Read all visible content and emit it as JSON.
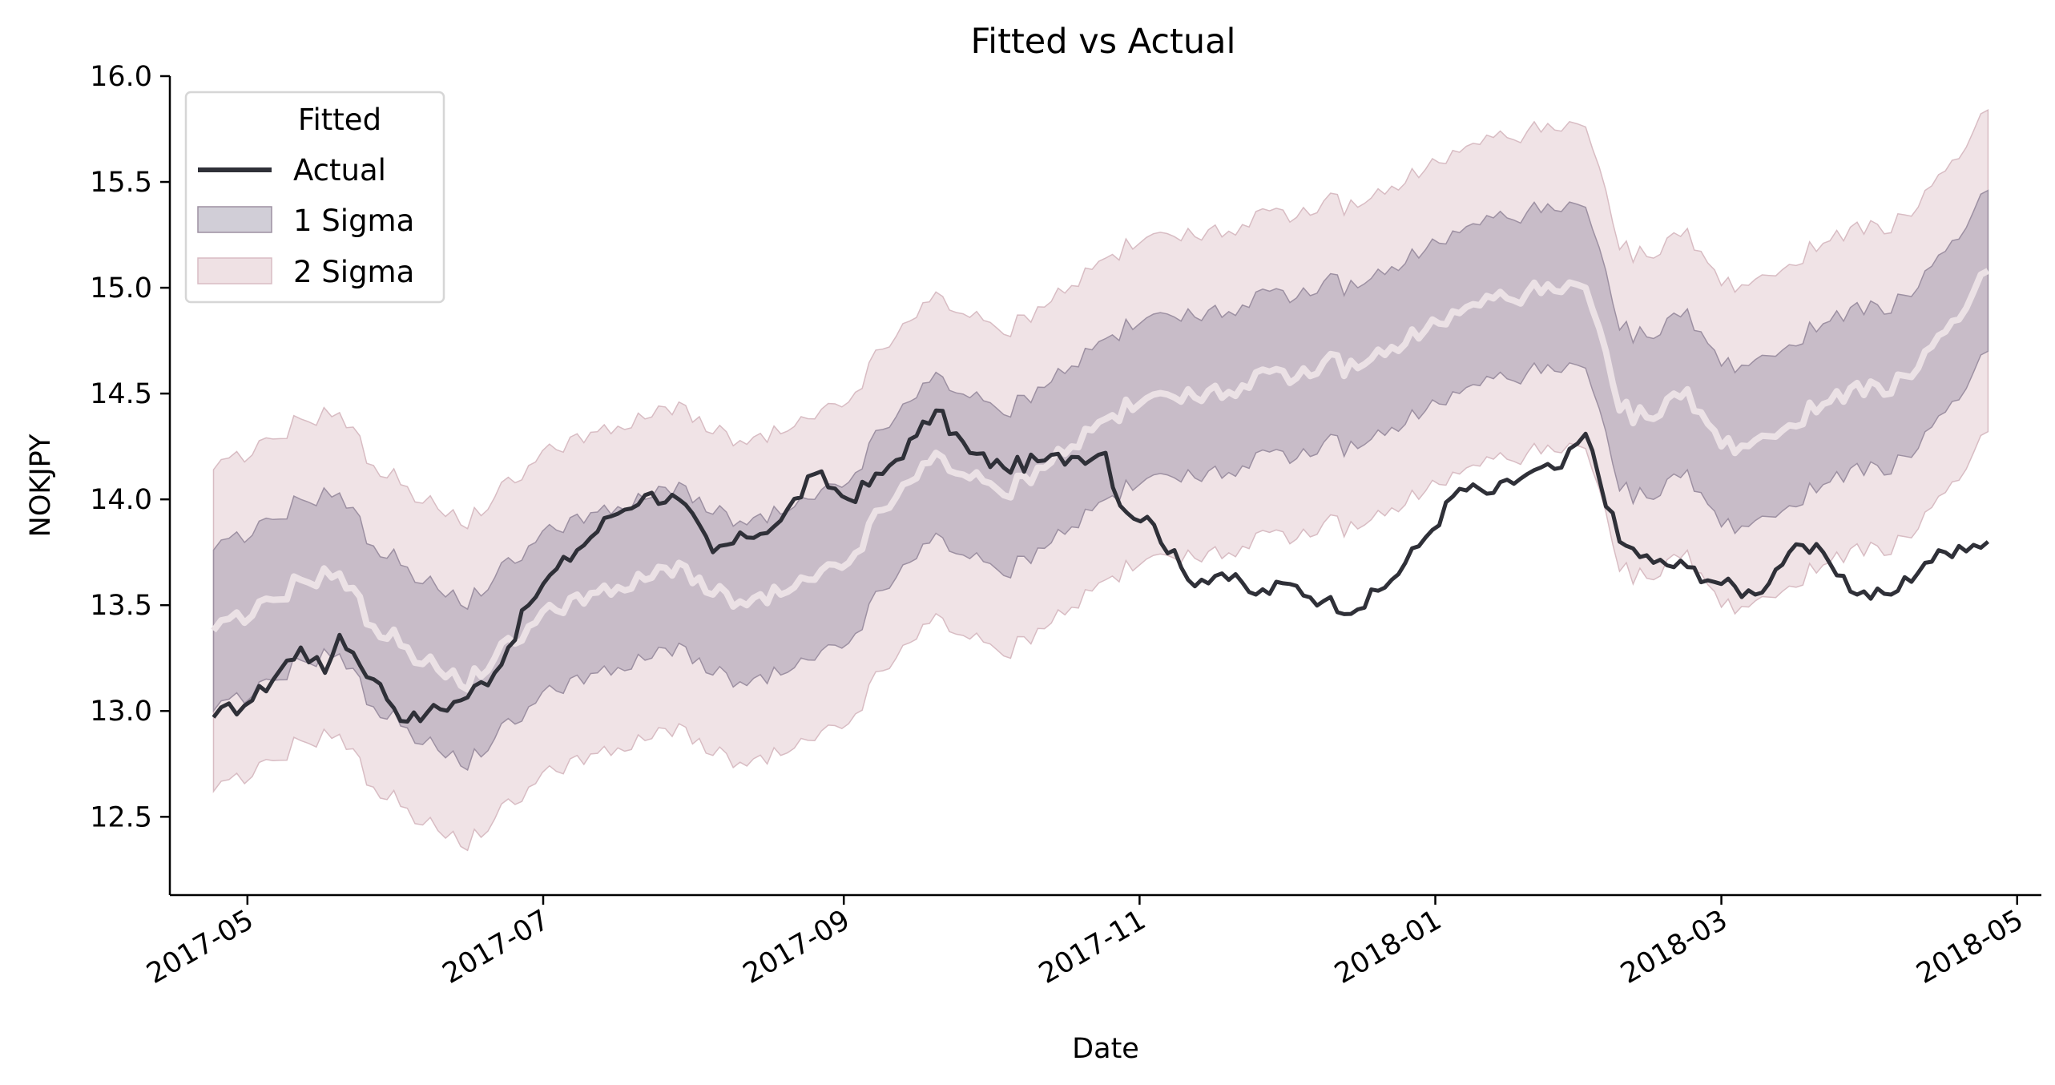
{
  "colors": {
    "actual": "#2f3038",
    "fitted": "#ebe1e5",
    "sigma1_fill": "#b8b4c2",
    "sigma2_fill": "#ebd9dd"
  },
  "chart_data": {
    "type": "line",
    "title": "Fitted vs Actual",
    "xlabel": "Date",
    "ylabel": "NOKJPY",
    "xlim": [
      "2017-04-15",
      "2018-05-06"
    ],
    "ylim": [
      12.13,
      16.0
    ],
    "yticks": [
      12.5,
      13.0,
      13.5,
      14.0,
      14.5,
      15.0,
      15.5,
      16.0
    ],
    "ytick_labels": [
      "12.5",
      "13.0",
      "13.5",
      "14.0",
      "14.5",
      "15.0",
      "15.5",
      "16.0"
    ],
    "xticks": [
      "2017-05-01",
      "2017-07-01",
      "2017-09-01",
      "2017-11-01",
      "2018-01-01",
      "2018-03-01",
      "2018-05-01"
    ],
    "xtick_labels": [
      "2017-05",
      "2017-07",
      "2017-09",
      "2017-11",
      "2018-01",
      "2018-03",
      "2018-05"
    ],
    "legend": {
      "position": "upper-left",
      "title": "Fitted",
      "entries": [
        "Actual",
        "1 Sigma",
        "2 Sigma"
      ]
    },
    "grid": false,
    "sigma_half_width": 0.38,
    "series": [
      {
        "name": "Actual",
        "x": [
          "2017-04-24",
          "2017-05-02",
          "2017-05-12",
          "2017-05-17",
          "2017-05-20",
          "2017-05-27",
          "2017-06-03",
          "2017-06-07",
          "2017-06-14",
          "2017-06-21",
          "2017-06-28",
          "2017-07-01",
          "2017-07-08",
          "2017-07-15",
          "2017-07-22",
          "2017-07-29",
          "2017-08-05",
          "2017-08-12",
          "2017-08-19",
          "2017-08-26",
          "2017-09-02",
          "2017-09-09",
          "2017-09-16",
          "2017-09-20",
          "2017-09-27",
          "2017-10-04",
          "2017-10-11",
          "2017-10-18",
          "2017-10-25",
          "2017-10-28",
          "2017-11-04",
          "2017-11-11",
          "2017-11-18",
          "2017-11-25",
          "2017-12-02",
          "2017-12-09",
          "2017-12-16",
          "2017-12-23",
          "2017-12-30",
          "2018-01-06",
          "2018-01-13",
          "2018-01-20",
          "2018-01-27",
          "2018-02-01",
          "2018-02-08",
          "2018-02-15",
          "2018-02-22",
          "2018-03-01",
          "2018-03-08",
          "2018-03-15",
          "2018-03-22",
          "2018-03-29",
          "2018-04-05",
          "2018-04-12",
          "2018-04-19",
          "2018-04-25"
        ],
        "y": [
          12.97,
          13.05,
          13.3,
          13.18,
          13.36,
          13.15,
          12.95,
          12.99,
          13.05,
          13.18,
          13.5,
          13.6,
          13.76,
          13.92,
          14.02,
          14.0,
          13.75,
          13.82,
          13.9,
          14.12,
          14.0,
          14.12,
          14.3,
          14.42,
          14.22,
          14.15,
          14.18,
          14.2,
          14.22,
          13.97,
          13.88,
          13.62,
          13.65,
          13.55,
          13.6,
          13.52,
          13.48,
          13.62,
          13.82,
          14.05,
          14.03,
          14.12,
          14.15,
          14.31,
          13.8,
          13.7,
          13.68,
          13.6,
          13.55,
          13.75,
          13.75,
          13.55,
          13.55,
          13.7,
          13.78,
          13.8
        ]
      },
      {
        "name": "Fitted",
        "x": [
          "2017-04-24",
          "2017-05-02",
          "2017-05-12",
          "2017-05-20",
          "2017-05-27",
          "2017-06-03",
          "2017-06-14",
          "2017-06-21",
          "2017-06-28",
          "2017-07-08",
          "2017-07-15",
          "2017-07-22",
          "2017-07-29",
          "2017-08-05",
          "2017-08-12",
          "2017-08-19",
          "2017-08-26",
          "2017-09-02",
          "2017-09-09",
          "2017-09-16",
          "2017-09-20",
          "2017-09-27",
          "2017-10-04",
          "2017-10-11",
          "2017-10-18",
          "2017-10-25",
          "2017-11-01",
          "2017-11-11",
          "2017-11-18",
          "2017-11-25",
          "2017-12-02",
          "2017-12-09",
          "2017-12-16",
          "2017-12-23",
          "2017-12-30",
          "2018-01-06",
          "2018-01-13",
          "2018-01-20",
          "2018-01-27",
          "2018-02-01",
          "2018-02-08",
          "2018-02-15",
          "2018-02-22",
          "2018-03-01",
          "2018-03-08",
          "2018-03-15",
          "2018-03-22",
          "2018-03-29",
          "2018-04-05",
          "2018-04-12",
          "2018-04-19",
          "2018-04-25"
        ],
        "y": [
          13.38,
          13.45,
          13.62,
          13.65,
          13.4,
          13.3,
          13.12,
          13.25,
          13.4,
          13.55,
          13.55,
          13.62,
          13.7,
          13.55,
          13.5,
          13.55,
          13.62,
          13.7,
          13.95,
          14.1,
          14.22,
          14.1,
          14.02,
          14.15,
          14.25,
          14.38,
          14.45,
          14.52,
          14.48,
          14.6,
          14.55,
          14.65,
          14.62,
          14.72,
          14.8,
          14.88,
          14.95,
          14.98,
          14.98,
          15.0,
          14.42,
          14.38,
          14.52,
          14.25,
          14.28,
          14.35,
          14.45,
          14.55,
          14.5,
          14.7,
          14.85,
          15.08
        ]
      }
    ]
  }
}
